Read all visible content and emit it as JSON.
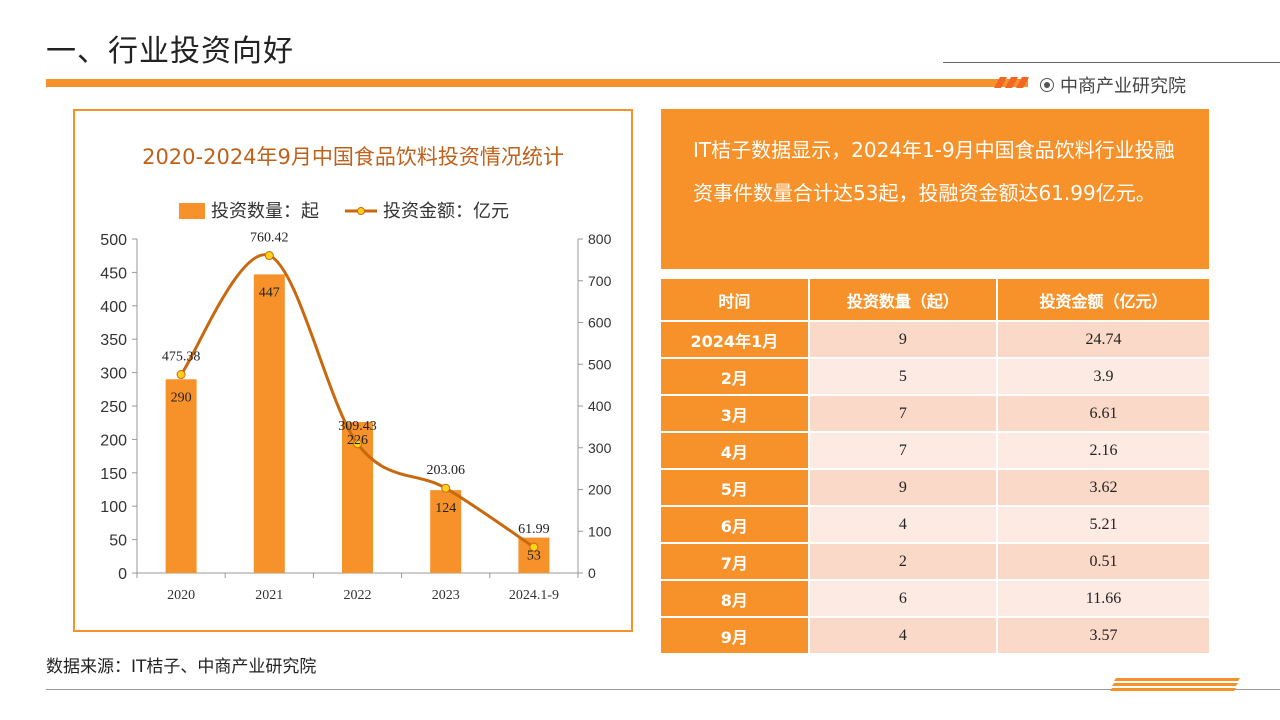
{
  "header": {
    "title": "一、行业投资向好",
    "brand": "中商产业研究院"
  },
  "colors": {
    "accent": "#f7922b",
    "line": "#c8690f",
    "marker": "#ffd11a",
    "row_odd": "#fbd9c8",
    "row_even": "#fdebe3"
  },
  "chart_data": {
    "type": "bar",
    "title": "2020-2024年9月中国食品饮料投资情况统计",
    "categories": [
      "2020",
      "2021",
      "2022",
      "2023",
      "2024.1-9"
    ],
    "series": [
      {
        "name": "投资数量：起",
        "type": "bar",
        "axis": "left",
        "values": [
          290,
          447,
          226,
          124,
          53
        ]
      },
      {
        "name": "投资金额：亿元",
        "type": "line",
        "axis": "right",
        "values": [
          475.38,
          760.42,
          309.43,
          203.06,
          61.99
        ]
      }
    ],
    "left_axis": {
      "range": [
        0,
        500
      ],
      "ticks": [
        0,
        50,
        100,
        150,
        200,
        250,
        300,
        350,
        400,
        450,
        500
      ]
    },
    "right_axis": {
      "range": [
        0,
        800
      ],
      "ticks": [
        0,
        100,
        200,
        300,
        400,
        500,
        600,
        700,
        800
      ]
    },
    "bar_labels": [
      "290",
      "447",
      "226",
      "124",
      "53"
    ],
    "line_labels": [
      "475.38",
      "760.42",
      "309.43",
      "203.06",
      "61.99"
    ],
    "legend_position": "top",
    "grid": false
  },
  "info": {
    "text": "IT桔子数据显示，2024年1-9月中国食品饮料行业投融资事件数量合计达53起，投融资金额达61.99亿元。"
  },
  "table": {
    "headers": [
      "时间",
      "投资数量（起）",
      "投资金额（亿元）"
    ],
    "rows": [
      [
        "2024年1月",
        "9",
        "24.74"
      ],
      [
        "2月",
        "5",
        "3.9"
      ],
      [
        "3月",
        "7",
        "6.61"
      ],
      [
        "4月",
        "7",
        "2.16"
      ],
      [
        "5月",
        "9",
        "3.62"
      ],
      [
        "6月",
        "4",
        "5.21"
      ],
      [
        "7月",
        "2",
        "0.51"
      ],
      [
        "8月",
        "6",
        "11.66"
      ],
      [
        "9月",
        "4",
        "3.57"
      ]
    ]
  },
  "footer": {
    "source": "数据来源：IT桔子、中商产业研究院"
  }
}
